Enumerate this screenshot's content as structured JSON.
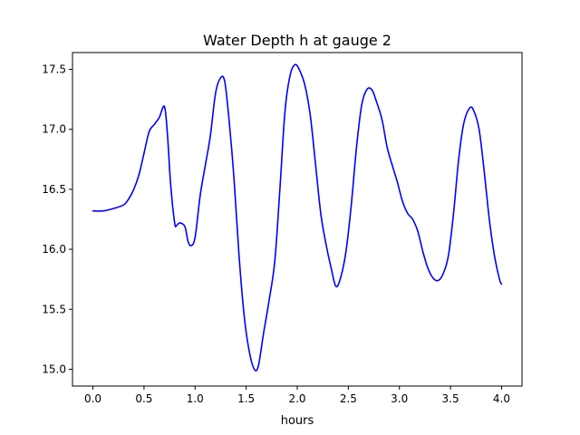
{
  "chart_data": {
    "type": "line",
    "title": "Water Depth h at gauge 2",
    "xlabel": "hours",
    "ylabel": "",
    "xlim": [
      -0.2,
      4.2
    ],
    "ylim": [
      14.86,
      17.64
    ],
    "xticks": [
      0.0,
      0.5,
      1.0,
      1.5,
      2.0,
      2.5,
      3.0,
      3.5,
      4.0
    ],
    "xtick_labels": [
      "0.0",
      "0.5",
      "1.0",
      "1.5",
      "2.0",
      "2.5",
      "3.0",
      "3.5",
      "4.0"
    ],
    "yticks": [
      15.0,
      15.5,
      16.0,
      16.5,
      17.0,
      17.5
    ],
    "ytick_labels": [
      "15.0",
      "15.5",
      "16.0",
      "16.5",
      "17.0",
      "17.5"
    ],
    "grid": false,
    "series": [
      {
        "color": "#0000ff",
        "x": [
          0.0,
          0.1,
          0.2,
          0.3,
          0.35,
          0.4,
          0.45,
          0.5,
          0.55,
          0.6,
          0.65,
          0.7,
          0.73,
          0.76,
          0.8,
          0.82,
          0.85,
          0.9,
          0.93,
          0.96,
          1.0,
          1.05,
          1.1,
          1.15,
          1.2,
          1.25,
          1.29,
          1.33,
          1.38,
          1.43,
          1.48,
          1.53,
          1.58,
          1.62,
          1.67,
          1.72,
          1.78,
          1.83,
          1.88,
          1.93,
          1.98,
          2.03,
          2.08,
          2.13,
          2.18,
          2.23,
          2.28,
          2.33,
          2.38,
          2.43,
          2.48,
          2.53,
          2.58,
          2.63,
          2.68,
          2.73,
          2.78,
          2.83,
          2.88,
          2.93,
          2.98,
          3.03,
          3.08,
          3.13,
          3.18,
          3.23,
          3.28,
          3.33,
          3.38,
          3.43,
          3.48,
          3.53,
          3.58,
          3.63,
          3.69,
          3.73,
          3.78,
          3.83,
          3.88,
          3.93,
          3.98,
          4.0
        ],
        "y": [
          16.32,
          16.32,
          16.34,
          16.37,
          16.42,
          16.5,
          16.62,
          16.8,
          16.98,
          17.04,
          17.1,
          17.19,
          16.95,
          16.55,
          16.22,
          16.2,
          16.22,
          16.19,
          16.07,
          16.03,
          16.1,
          16.45,
          16.7,
          16.95,
          17.3,
          17.43,
          17.4,
          17.1,
          16.6,
          15.95,
          15.45,
          15.15,
          15.0,
          15.03,
          15.3,
          15.55,
          15.9,
          16.5,
          17.15,
          17.45,
          17.54,
          17.48,
          17.35,
          17.1,
          16.7,
          16.3,
          16.05,
          15.85,
          15.69,
          15.78,
          16.0,
          16.38,
          16.85,
          17.2,
          17.33,
          17.33,
          17.22,
          17.08,
          16.85,
          16.7,
          16.56,
          16.4,
          16.3,
          16.25,
          16.15,
          15.98,
          15.84,
          15.76,
          15.74,
          15.8,
          15.95,
          16.3,
          16.75,
          17.05,
          17.18,
          17.15,
          17.0,
          16.65,
          16.25,
          15.95,
          15.75,
          15.71
        ]
      }
    ]
  }
}
